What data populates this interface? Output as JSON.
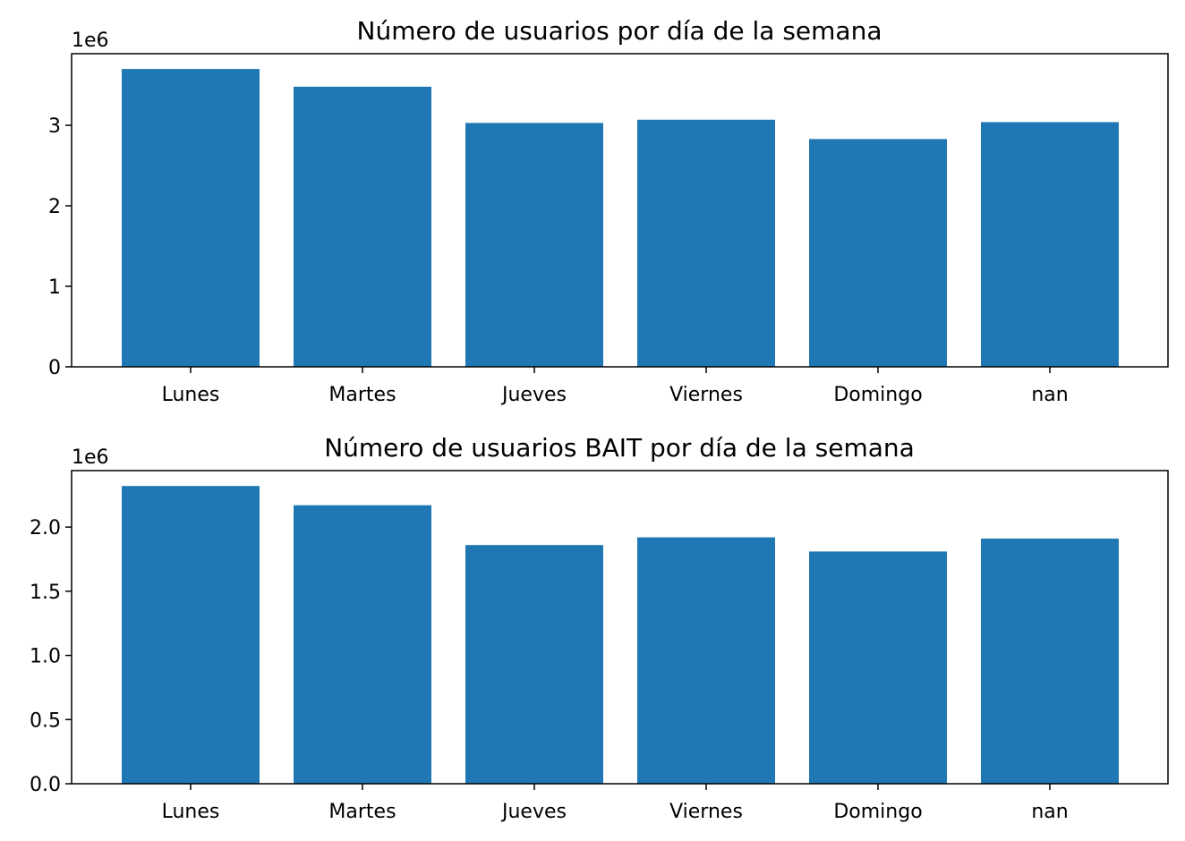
{
  "chart_data": [
    {
      "type": "bar",
      "title": "Número de usuarios por día de la semana",
      "categories": [
        "Lunes",
        "Martes",
        "Jueves",
        "Viernes",
        "Domingo",
        "nan"
      ],
      "values": [
        3700000,
        3480000,
        3030000,
        3070000,
        2830000,
        3040000
      ],
      "ylim": [
        0,
        3890000
      ],
      "yticks": [
        0,
        1,
        2,
        3
      ],
      "ytick_labels": [
        "0",
        "1",
        "2",
        "3"
      ],
      "y_offset_label": "1e6",
      "xlabel": "",
      "ylabel": "",
      "bar_color": "#1f77b4",
      "grid": false
    },
    {
      "type": "bar",
      "title": "Número de usuarios BAIT por día de la semana",
      "categories": [
        "Lunes",
        "Martes",
        "Jueves",
        "Viernes",
        "Domingo",
        "nan"
      ],
      "values": [
        2320000,
        2170000,
        1860000,
        1920000,
        1810000,
        1910000
      ],
      "ylim": [
        0,
        2440000
      ],
      "yticks": [
        0,
        0.5,
        1.0,
        1.5,
        2.0
      ],
      "ytick_labels": [
        "0.0",
        "0.5",
        "1.0",
        "1.5",
        "2.0"
      ],
      "y_offset_label": "1e6",
      "xlabel": "",
      "ylabel": "",
      "bar_color": "#1f77b4",
      "grid": false
    }
  ]
}
